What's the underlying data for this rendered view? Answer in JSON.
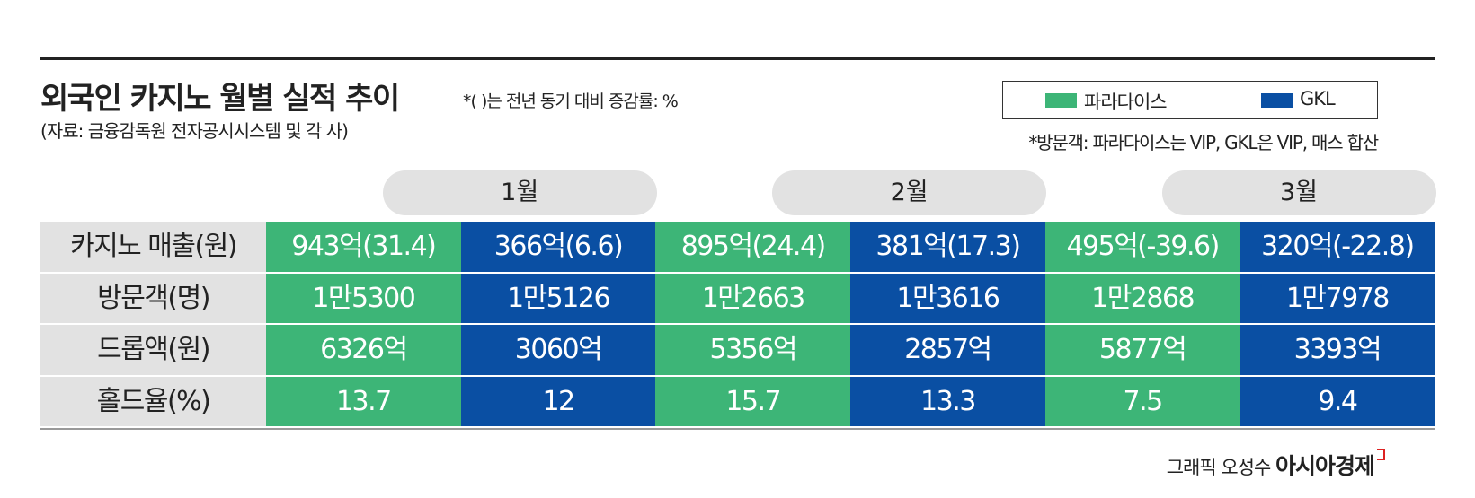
{
  "header": {
    "title": "외국인 카지노 월별 실적 추이",
    "note": "*( )는 전년 동기 대비 증감률: %",
    "source": "(자료: 금융감독원 전자공시시스템 및 각 사)"
  },
  "legend": {
    "items": [
      {
        "label": "파라다이스",
        "color": "#3db577"
      },
      {
        "label": "GKL",
        "color": "#0a4fa3"
      }
    ],
    "footnote": "*방문객: 파라다이스는 VIP, GKL은 VIP, 매스 합산"
  },
  "months": [
    "1월",
    "2월",
    "3월"
  ],
  "table": {
    "rows": [
      {
        "label": "카지노 매출(원)",
        "cells": [
          "943억(31.4)",
          "366억(6.6)",
          "895억(24.4)",
          "381억(17.3)",
          "495억(-39.6)",
          "320억(-22.8)"
        ]
      },
      {
        "label": "방문객(명)",
        "cells": [
          "1만5300",
          "1만5126",
          "1만2663",
          "1만3616",
          "1만2868",
          "1만7978"
        ]
      },
      {
        "label": "드롭액(원)",
        "cells": [
          "6326억",
          "3060억",
          "5356억",
          "2857억",
          "5877억",
          "3393억"
        ]
      },
      {
        "label": "홀드율(%)",
        "cells": [
          "13.7",
          "12",
          "15.7",
          "13.3",
          "7.5",
          "9.4"
        ]
      }
    ]
  },
  "credit": {
    "graphic": "그래픽 오성수",
    "brand": "아시아경제"
  }
}
